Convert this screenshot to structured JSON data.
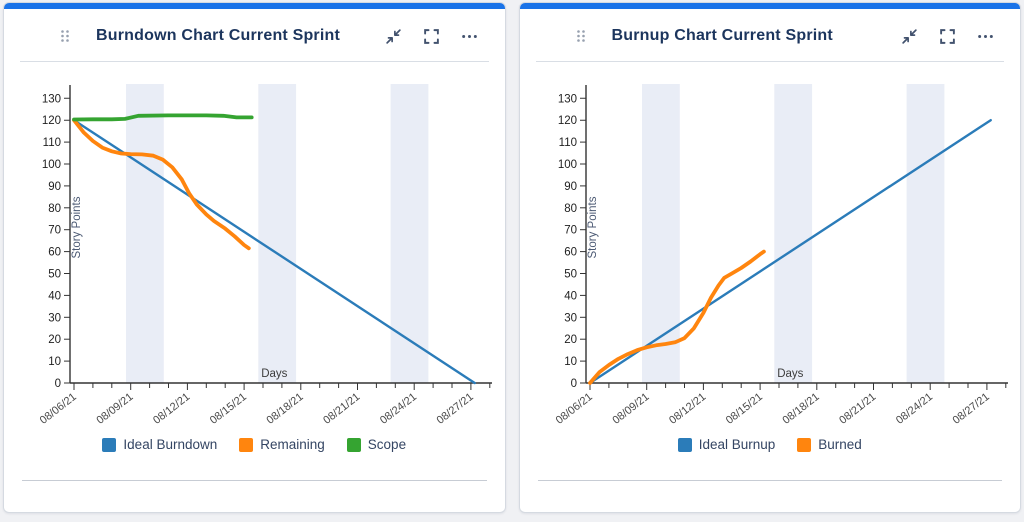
{
  "page": {
    "background_color": "#f0f1f4",
    "accent_color": "#1a73e8"
  },
  "cards": [
    {
      "title": "Burndown Chart Current Sprint",
      "header_icons": [
        {
          "name": "drag-handle-icon"
        },
        {
          "name": "collapse-icon"
        },
        {
          "name": "fullscreen-icon"
        },
        {
          "name": "more-options-icon"
        }
      ],
      "chart_ref": 0
    },
    {
      "title": "Burnup Chart Current Sprint",
      "header_icons": [
        {
          "name": "drag-handle-icon"
        },
        {
          "name": "collapse-icon"
        },
        {
          "name": "fullscreen-icon"
        },
        {
          "name": "more-options-icon"
        }
      ],
      "chart_ref": 1
    }
  ],
  "chart_data": [
    {
      "type": "line",
      "title": "Burndown Chart Current Sprint",
      "xlabel": "Days",
      "ylabel": "Story Points",
      "ylim": [
        0,
        135
      ],
      "grid": false,
      "legend_position": "bottom",
      "axis_color": "#333333",
      "band_color": "#e9edf6",
      "y_ticks": [
        "0",
        "10",
        "20",
        "30",
        "40",
        "50",
        "60",
        "70",
        "80",
        "90",
        "100",
        "110",
        "120",
        "130"
      ],
      "x_ticks": [
        {
          "day": 0,
          "label": "08/06/21"
        },
        {
          "day": 3,
          "label": "08/09/21"
        },
        {
          "day": 6,
          "label": "08/12/21"
        },
        {
          "day": 9,
          "label": "08/15/21"
        },
        {
          "day": 12,
          "label": "08/18/21"
        },
        {
          "day": 15,
          "label": "08/21/21"
        },
        {
          "day": 18,
          "label": "08/24/21"
        },
        {
          "day": 21,
          "label": "08/27/21"
        }
      ],
      "weekend_bands": [
        [
          2.75,
          4.75
        ],
        [
          9.75,
          11.75
        ],
        [
          16.75,
          18.75
        ]
      ],
      "series": [
        {
          "name": "Ideal Burndown",
          "color": "#2b7cb9",
          "width": 2.4,
          "points": [
            [
              0,
              120
            ],
            [
              21.2,
              0
            ]
          ]
        },
        {
          "name": "Remaining",
          "color": "#ff850e",
          "width": 3.8,
          "points": [
            [
              0,
              120
            ],
            [
              0.5,
              114.5
            ],
            [
              1,
              110.5
            ],
            [
              1.5,
              107.5
            ],
            [
              2,
              105.8
            ],
            [
              2.5,
              104.8
            ],
            [
              3,
              104.5
            ],
            [
              3.6,
              104.4
            ],
            [
              4.2,
              103.8
            ],
            [
              4.7,
              102
            ],
            [
              5.2,
              98.5
            ],
            [
              5.7,
              93
            ],
            [
              6.1,
              86.5
            ],
            [
              6.5,
              81.5
            ],
            [
              7,
              77
            ],
            [
              7.4,
              74
            ],
            [
              8,
              70.5
            ],
            [
              8.5,
              67
            ],
            [
              9,
              63
            ],
            [
              9.25,
              61.5
            ]
          ]
        },
        {
          "name": "Scope",
          "color": "#35a431",
          "width": 3.8,
          "points": [
            [
              0,
              120.3
            ],
            [
              1,
              120.4
            ],
            [
              2,
              120.4
            ],
            [
              2.7,
              120.6
            ],
            [
              3.4,
              122
            ],
            [
              5,
              122.2
            ],
            [
              7,
              122.2
            ],
            [
              7.9,
              122
            ],
            [
              8.6,
              121.3
            ],
            [
              9.4,
              121.3
            ]
          ]
        }
      ]
    },
    {
      "type": "line",
      "title": "Burnup Chart Current Sprint",
      "xlabel": "Days",
      "ylabel": "Story Points",
      "ylim": [
        0,
        135
      ],
      "grid": false,
      "legend_position": "bottom",
      "axis_color": "#333333",
      "band_color": "#e9edf6",
      "y_ticks": [
        "0",
        "10",
        "20",
        "30",
        "40",
        "50",
        "60",
        "70",
        "80",
        "90",
        "100",
        "110",
        "120",
        "130"
      ],
      "x_ticks": [
        {
          "day": 0,
          "label": "08/06/21"
        },
        {
          "day": 3,
          "label": "08/09/21"
        },
        {
          "day": 6,
          "label": "08/12/21"
        },
        {
          "day": 9,
          "label": "08/15/21"
        },
        {
          "day": 12,
          "label": "08/18/21"
        },
        {
          "day": 15,
          "label": "08/21/21"
        },
        {
          "day": 18,
          "label": "08/24/21"
        },
        {
          "day": 21,
          "label": "08/27/21"
        }
      ],
      "weekend_bands": [
        [
          2.75,
          4.75
        ],
        [
          9.75,
          11.75
        ],
        [
          16.75,
          18.75
        ]
      ],
      "series": [
        {
          "name": "Ideal Burnup",
          "color": "#2b7cb9",
          "width": 2.4,
          "points": [
            [
              0,
              0
            ],
            [
              21.2,
              120
            ]
          ]
        },
        {
          "name": "Burned",
          "color": "#ff850e",
          "width": 3.8,
          "points": [
            [
              0,
              0
            ],
            [
              0.5,
              5
            ],
            [
              1,
              8.2
            ],
            [
              1.5,
              11
            ],
            [
              2,
              13.2
            ],
            [
              2.5,
              15
            ],
            [
              3,
              16.3
            ],
            [
              3.5,
              17.2
            ],
            [
              4,
              17.8
            ],
            [
              4.5,
              18.6
            ],
            [
              5,
              20.5
            ],
            [
              5.5,
              25
            ],
            [
              6,
              32
            ],
            [
              6.4,
              39
            ],
            [
              6.8,
              44.5
            ],
            [
              7.1,
              48
            ],
            [
              7.5,
              50
            ],
            [
              8,
              52.5
            ],
            [
              8.5,
              55.5
            ],
            [
              9,
              58.8
            ],
            [
              9.2,
              60
            ]
          ]
        }
      ]
    }
  ]
}
